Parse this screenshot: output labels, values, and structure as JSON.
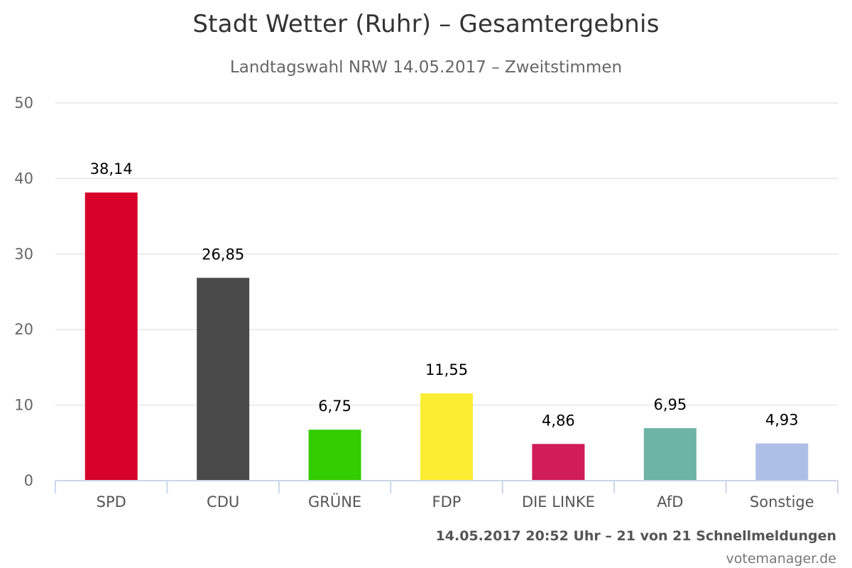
{
  "chart_data": {
    "type": "bar",
    "title": "Stadt Wetter (Ruhr) – Gesamtergebnis",
    "subtitle": "Landtagswahl NRW 14.05.2017 – Zweitstimmen",
    "categories": [
      "SPD",
      "CDU",
      "GRÜNE",
      "FDP",
      "DIE LINKE",
      "AfD",
      "Sonstige"
    ],
    "values": [
      38.14,
      26.85,
      6.75,
      11.55,
      4.86,
      6.95,
      4.93
    ],
    "data_labels": [
      "38,14",
      "26,85",
      "6,75",
      "11,55",
      "4,86",
      "6,95",
      "4,93"
    ],
    "colors": [
      "#d6002b",
      "#4a4a4a",
      "#33cc00",
      "#fbed32",
      "#d01c59",
      "#6db3a6",
      "#adbfe6"
    ],
    "ylim": [
      0,
      50
    ],
    "yticks": [
      0,
      10,
      20,
      30,
      40,
      50
    ],
    "xlabel": "",
    "ylabel": "",
    "grid": true,
    "legend": "none"
  },
  "footer": {
    "status": "14.05.2017 20:52 Uhr – 21 von 21 Schnellmeldungen",
    "credit": "votemanager.de"
  }
}
